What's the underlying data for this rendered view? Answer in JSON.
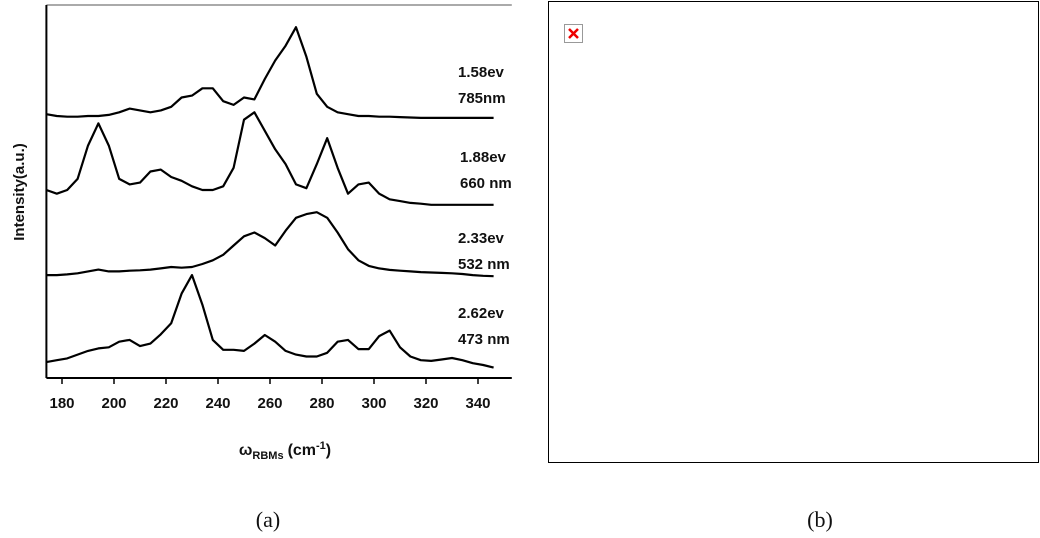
{
  "chart_data": {
    "type": "line",
    "ylabel": "Intensity(a.u.)",
    "xlabel": {
      "symbol": "ω",
      "subscript": "RBMs",
      "unit": "(cm",
      "superscript": "-1",
      "close": ")"
    },
    "x": [
      174,
      178,
      182,
      186,
      190,
      194,
      198,
      202,
      206,
      210,
      214,
      218,
      222,
      226,
      230,
      234,
      238,
      242,
      246,
      250,
      254,
      258,
      262,
      266,
      270,
      274,
      278,
      282,
      286,
      290,
      294,
      298,
      302,
      306,
      310,
      314,
      318,
      322,
      326,
      330,
      334,
      338,
      342,
      346
    ],
    "series": [
      {
        "name": "785nm",
        "color": "#000000",
        "values": [
          70.5,
          70,
          69.8,
          69.8,
          70,
          70,
          70.3,
          71,
          72,
          71.5,
          71,
          71.5,
          72.5,
          75,
          75.5,
          77.5,
          77.5,
          74,
          73,
          75,
          74.5,
          80,
          85,
          89,
          94,
          86,
          76,
          72.5,
          71,
          70.5,
          70,
          70,
          69.8,
          69.8,
          69.7,
          69.6,
          69.5,
          69.5,
          69.5,
          69.5,
          69.5,
          69.5,
          69.5,
          69.5
        ]
      },
      {
        "name": "660 nm",
        "color": "#000000",
        "values": [
          50,
          49,
          50,
          53,
          62,
          68,
          62,
          53,
          51.5,
          52,
          55,
          55.5,
          53.5,
          52.5,
          51,
          50,
          50,
          51,
          56,
          69,
          71,
          66,
          61,
          57,
          51.5,
          50.5,
          57,
          64,
          56,
          49,
          51.5,
          52,
          49,
          47.5,
          47,
          46.5,
          46.3,
          46,
          46,
          46,
          46,
          46,
          46,
          46
        ]
      },
      {
        "name": "532 nm",
        "color": "#000000",
        "values": [
          27,
          27,
          27.2,
          27.5,
          28,
          28.5,
          28,
          28,
          28.2,
          28.3,
          28.5,
          28.8,
          29.2,
          29,
          29.2,
          30,
          31,
          32.5,
          35,
          37.5,
          38.5,
          37,
          35,
          39,
          42.5,
          43.5,
          44,
          42.5,
          38.5,
          34,
          31,
          29.5,
          28.8,
          28.4,
          28.2,
          28,
          27.8,
          27.7,
          27.6,
          27.5,
          27.3,
          27,
          26.8,
          26.7
        ]
      },
      {
        "name": "473 nm",
        "color": "#000000",
        "values": [
          3.5,
          4,
          4.5,
          5.5,
          6.5,
          7.2,
          7.5,
          9,
          9.5,
          7.8,
          8.5,
          11,
          14,
          22,
          27,
          19,
          9.5,
          6.8,
          6.8,
          6.5,
          8.5,
          10.8,
          9,
          6.5,
          5.5,
          5,
          5,
          6,
          9,
          9.5,
          7,
          7,
          10.5,
          12,
          7.5,
          5,
          4,
          3.8,
          4.2,
          4.6,
          4,
          3.2,
          2.7,
          2
        ]
      }
    ],
    "annotations": [
      "1.58ev",
      "1.88ev",
      "2.33ev",
      "2.62ev"
    ],
    "xlim": [
      174,
      353
    ],
    "xticks": [
      180,
      200,
      220,
      240,
      260,
      280,
      300,
      320,
      340
    ],
    "ylim": [
      0,
      100
    ]
  },
  "captions": [
    "(a)",
    "(b)"
  ]
}
